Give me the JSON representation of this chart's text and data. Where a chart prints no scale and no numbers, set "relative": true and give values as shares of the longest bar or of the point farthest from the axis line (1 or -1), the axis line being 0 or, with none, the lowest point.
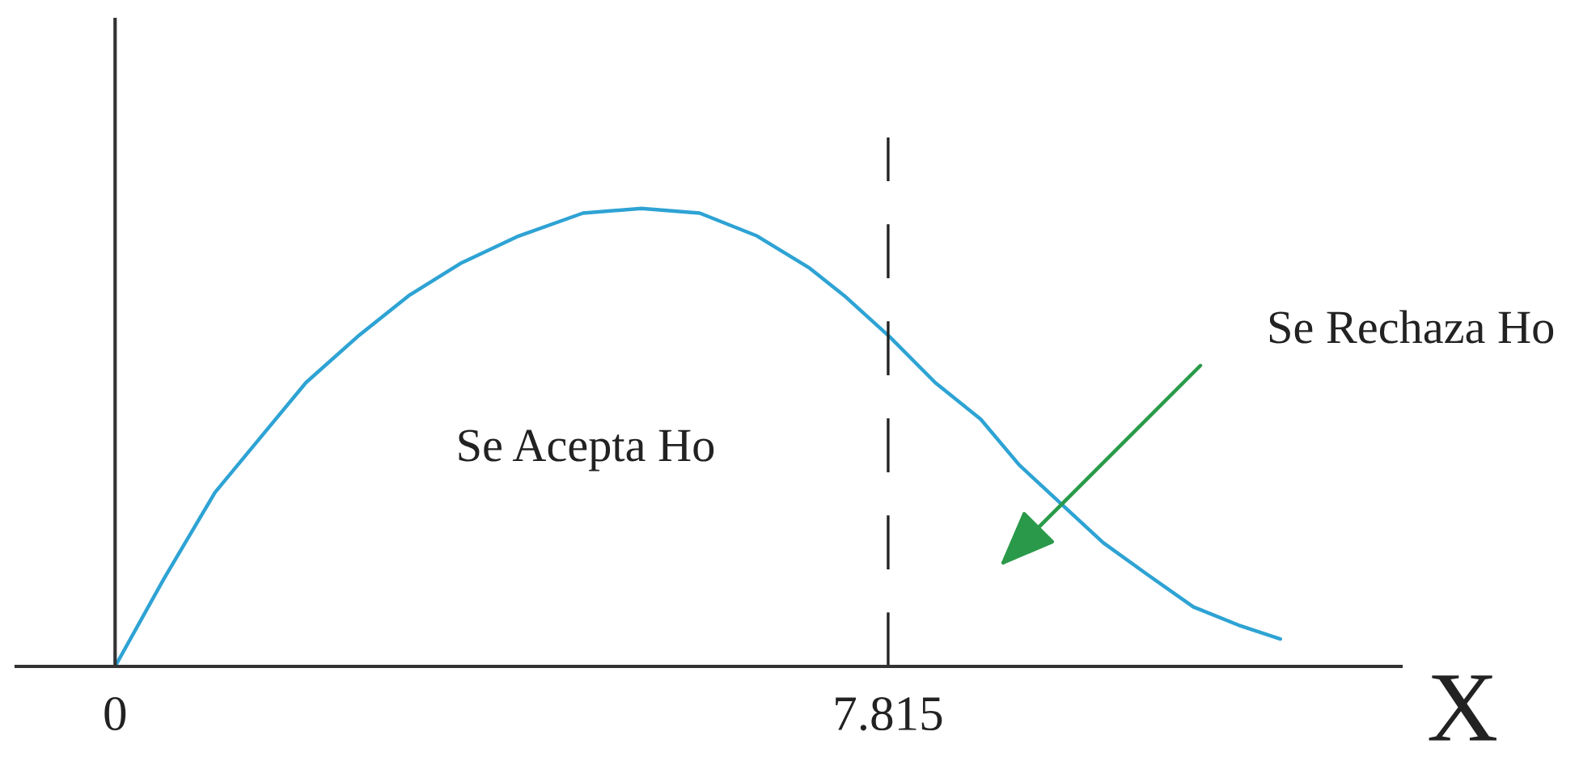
{
  "chart_data": {
    "type": "line",
    "relative": true,
    "xlabel": "X",
    "x": [
      0,
      0.49,
      1.01,
      1.47,
      1.93,
      2.45,
      2.97,
      3.49,
      4.08,
      4.73,
      5.32,
      5.91,
      6.49,
      7.02,
      7.37,
      7.83,
      8.29,
      8.75,
      9.14,
      9.59,
      9.99,
      10.44,
      10.9,
      11.36,
      11.78
    ],
    "series": [
      {
        "color": "#2ea3d4",
        "values": [
          0,
          0.19,
          0.38,
          0.5,
          0.62,
          0.72,
          0.81,
          0.88,
          0.94,
          0.99,
          1,
          0.99,
          0.94,
          0.87,
          0.81,
          0.72,
          0.62,
          0.54,
          0.44,
          0.35,
          0.27,
          0.2,
          0.13,
          0.09,
          0.06
        ]
      }
    ],
    "xlim": [
      -1,
      13
    ],
    "xticks": [
      0,
      7.815
    ],
    "ref_lines": [
      {
        "axis": "x",
        "value": 7.815,
        "color": "#222222",
        "line_style": "dashed"
      }
    ],
    "annotations": [
      "Se Acepta Ho",
      "Se Rechaza Ho"
    ]
  }
}
